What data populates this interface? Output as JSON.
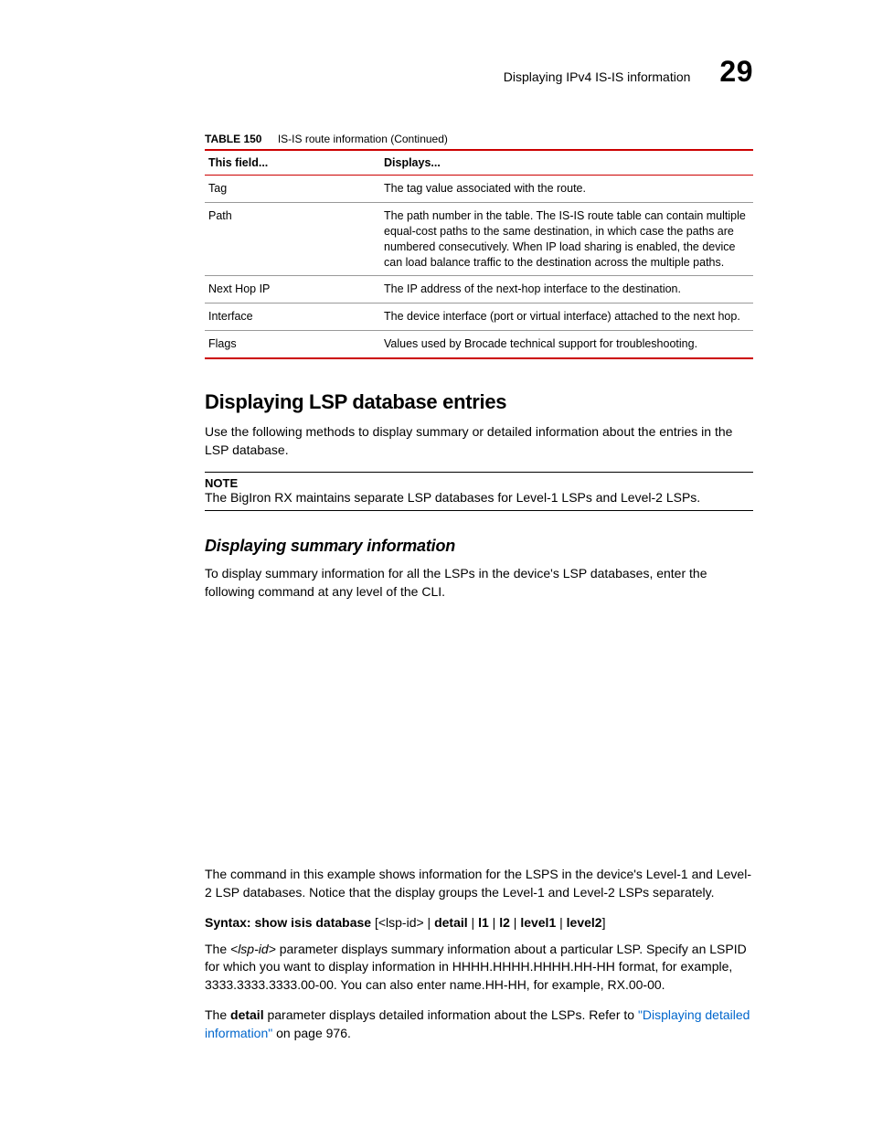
{
  "header": {
    "running_title": "Displaying IPv4 IS-IS information",
    "chapter_number": "29"
  },
  "table_caption": {
    "label": "TABLE 150",
    "title": "IS-IS route information  (Continued)"
  },
  "table": {
    "columns": [
      "This field...",
      "Displays..."
    ],
    "rows": [
      {
        "field": "Tag",
        "desc": "The tag value associated with the route."
      },
      {
        "field": "Path",
        "desc": "The path number in the table. The IS-IS route table can contain multiple equal-cost paths to the same destination, in which case the paths are numbered consecutively. When IP load sharing is enabled, the device can load balance traffic to the destination across the multiple paths."
      },
      {
        "field": "Next Hop IP",
        "desc": "The IP address of the next-hop interface to the destination."
      },
      {
        "field": "Interface",
        "desc": "The device interface (port or virtual interface) attached to the next hop."
      },
      {
        "field": "Flags",
        "desc": "Values used by Brocade technical support for troubleshooting."
      }
    ]
  },
  "section_heading": "Displaying LSP database entries",
  "intro_paragraph": "Use the following methods to display summary or detailed information about the entries in the LSP database.",
  "note": {
    "label": "NOTE",
    "text": "The BigIron RX maintains separate LSP databases for Level-1 LSPs and Level-2 LSPs."
  },
  "subsection_heading": "Displaying summary information",
  "summary_paragraph": "To display summary information for all the LSPs in the device's LSP databases, enter the following command at any level of the CLI.",
  "example_paragraph": "The command in this example shows information for the LSPS in the device's Level-1 and Level-2 LSP databases. Notice that the display groups the Level-1 and Level-2 LSPs separately.",
  "syntax": {
    "prefix": "Syntax:  ",
    "cmd_bold": "show isis database",
    "rest_open": " [<lsp-id> | ",
    "opt1": "detail",
    "sep1": " | ",
    "opt2": "l1",
    "sep2": " | ",
    "opt3": "l2",
    "sep3": " | ",
    "opt4": "level1",
    "sep4": " | ",
    "opt5": "level2",
    "close": "]"
  },
  "lspid_paragraph_pre": "The ",
  "lspid_em": "<lsp-id>",
  "lspid_paragraph_post": " parameter displays summary information about a particular LSP. Specify an LSPID for which you want to display information in HHHH.HHHH.HHHH.HH-HH format, for example, 3333.3333.3333.00-00. You can also enter name.HH-HH, for example, RX.00-00.",
  "detail_paragraph_pre": "The ",
  "detail_bold": "detail",
  "detail_paragraph_mid": " parameter displays detailed information about the LSPs. Refer to ",
  "detail_link": "\"Displaying detailed information\"",
  "detail_paragraph_post": " on page 976."
}
